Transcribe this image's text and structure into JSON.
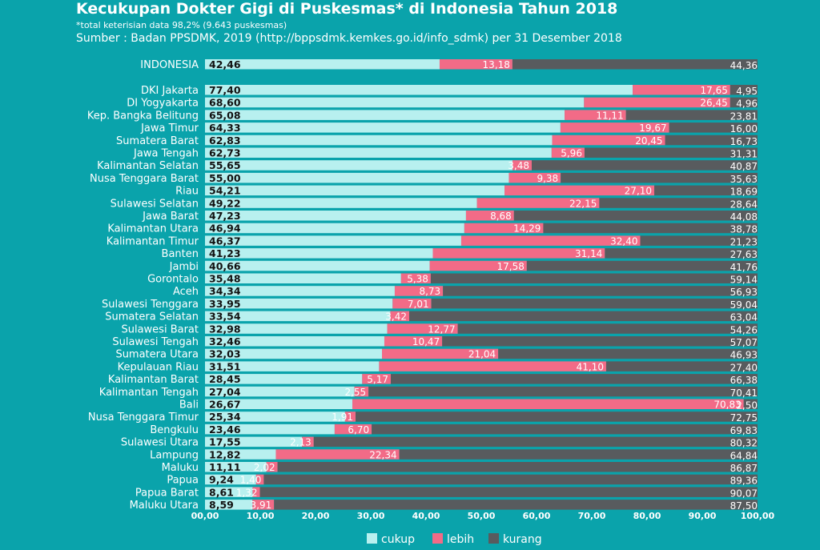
{
  "header": {
    "title": "Kecukupan Dokter Gigi di Puskesmas* di Indonesia Tahun 2018",
    "footnote": "*total keterisian data 98,2% (9.643 puskesmas)",
    "source": "Sumber : Badan PPSDMK, 2019 (http://bppsdmk.kemkes.go.id/info_sdmk) per 31 Desember 2018"
  },
  "colors": {
    "background": "#0aa3ab",
    "cukup": "#b8f0ef",
    "lebih": "#f26b87",
    "kurang": "#585b5e"
  },
  "chart_data": {
    "type": "bar",
    "orientation": "horizontal",
    "stacked": true,
    "title": "Kecukupan Dokter Gigi di Puskesmas* di Indonesia Tahun 2018",
    "xlim": [
      0,
      100
    ],
    "xticks": [
      "00,00",
      "10,00",
      "20,00",
      "30,00",
      "40,00",
      "50,00",
      "60,00",
      "70,00",
      "80,00",
      "90,00",
      "100,00"
    ],
    "legend_position": "bottom",
    "series": [
      {
        "name": "cukup",
        "key": "c"
      },
      {
        "name": "lebih",
        "key": "l"
      },
      {
        "name": "kurang",
        "key": "k"
      }
    ],
    "national": {
      "name": "INDONESIA",
      "c": "42,46",
      "l": "13,18",
      "k": "44,36"
    },
    "provinces": [
      {
        "name": "DKI Jakarta",
        "c": "77,40",
        "l": "17,65",
        "k": "4,95"
      },
      {
        "name": "DI Yogyakarta",
        "c": "68,60",
        "l": "26,45",
        "k": "4,96"
      },
      {
        "name": "Kep. Bangka Belitung",
        "c": "65,08",
        "l": "11,11",
        "k": "23,81"
      },
      {
        "name": "Jawa Timur",
        "c": "64,33",
        "l": "19,67",
        "k": "16,00"
      },
      {
        "name": "Sumatera Barat",
        "c": "62,83",
        "l": "20,45",
        "k": "16,73"
      },
      {
        "name": "Jawa Tengah",
        "c": "62,73",
        "l": "5,96",
        "k": "31,31"
      },
      {
        "name": "Kalimantan Selatan",
        "c": "55,65",
        "l": "3,48",
        "k": "40,87"
      },
      {
        "name": "Nusa Tenggara Barat",
        "c": "55,00",
        "l": "9,38",
        "k": "35,63"
      },
      {
        "name": "Riau",
        "c": "54,21",
        "l": "27,10",
        "k": "18,69"
      },
      {
        "name": "Sulawesi Selatan",
        "c": "49,22",
        "l": "22,15",
        "k": "28,64"
      },
      {
        "name": "Jawa Barat",
        "c": "47,23",
        "l": "8,68",
        "k": "44,08"
      },
      {
        "name": "Kalimantan Utara",
        "c": "46,94",
        "l": "14,29",
        "k": "38,78"
      },
      {
        "name": "Kalimantan Timur",
        "c": "46,37",
        "l": "32,40",
        "k": "21,23"
      },
      {
        "name": "Banten",
        "c": "41,23",
        "l": "31,14",
        "k": "27,63"
      },
      {
        "name": "Jambi",
        "c": "40,66",
        "l": "17,58",
        "k": "41,76"
      },
      {
        "name": "Gorontalo",
        "c": "35,48",
        "l": "5,38",
        "k": "59,14"
      },
      {
        "name": "Aceh",
        "c": "34,34",
        "l": "8,73",
        "k": "56,93"
      },
      {
        "name": "Sulawesi Tenggara",
        "c": "33,95",
        "l": "7,01",
        "k": "59,04"
      },
      {
        "name": "Sumatera Selatan",
        "c": "33,54",
        "l": "3,42",
        "k": "63,04"
      },
      {
        "name": "Sulawesi Barat",
        "c": "32,98",
        "l": "12,77",
        "k": "54,26"
      },
      {
        "name": "Sulawesi Tengah",
        "c": "32,46",
        "l": "10,47",
        "k": "57,07"
      },
      {
        "name": "Sumatera Utara",
        "c": "32,03",
        "l": "21,04",
        "k": "46,93"
      },
      {
        "name": "Kepulauan Riau",
        "c": "31,51",
        "l": "41,10",
        "k": "27,40"
      },
      {
        "name": "Kalimantan Barat",
        "c": "28,45",
        "l": "5,17",
        "k": "66,38"
      },
      {
        "name": "Kalimantan Tengah",
        "c": "27,04",
        "l": "2,55",
        "k": "70,41"
      },
      {
        "name": "Bali",
        "c": "26,67",
        "l": "70,83",
        "k": "2,50"
      },
      {
        "name": "Nusa Tenggara Timur",
        "c": "25,34",
        "l": "1,91",
        "k": "72,75"
      },
      {
        "name": "Bengkulu",
        "c": "23,46",
        "l": "6,70",
        "k": "69,83"
      },
      {
        "name": "Sulawesi Utara",
        "c": "17,55",
        "l": "2,13",
        "k": "80,32"
      },
      {
        "name": "Lampung",
        "c": "12,82",
        "l": "22,34",
        "k": "64,84"
      },
      {
        "name": "Maluku",
        "c": "11,11",
        "l": "2,02",
        "k": "86,87"
      },
      {
        "name": "Papua",
        "c": "9,24",
        "l": "1,40",
        "k": "89,36"
      },
      {
        "name": "Papua Barat",
        "c": "8,61",
        "l": "1,32",
        "k": "90,07"
      },
      {
        "name": "Maluku Utara",
        "c": "8,59",
        "l": "3,91",
        "k": "87,50"
      }
    ]
  }
}
